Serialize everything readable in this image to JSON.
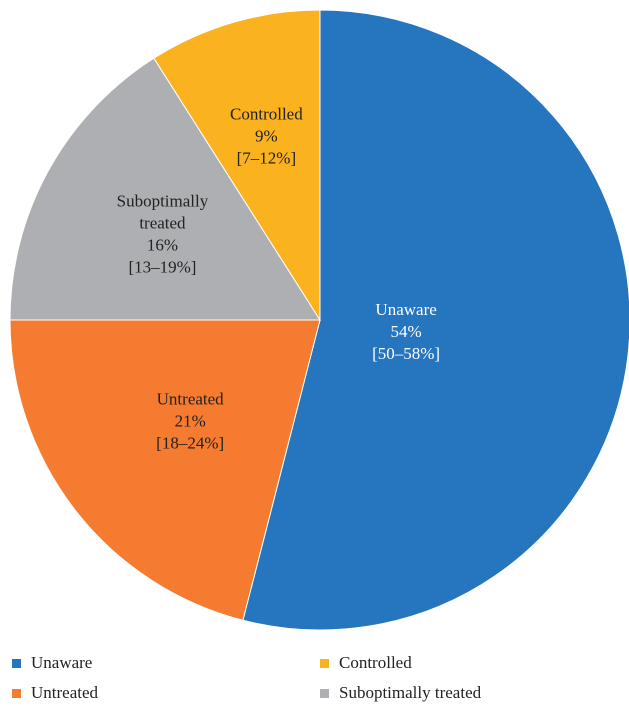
{
  "chart_data": {
    "type": "pie",
    "title": "",
    "slices": [
      {
        "label": "Unaware",
        "value": 54,
        "percent": "54%",
        "ci": "[50–58%]",
        "color": "#2575BF"
      },
      {
        "label": "Untreated",
        "value": 21,
        "percent": "21%",
        "ci": "[18–24%]",
        "color": "#F47B2F"
      },
      {
        "label": "Suboptimally treated",
        "value": 16,
        "percent": "16%",
        "ci": "[13–19%]",
        "color": "#AEAFB2"
      },
      {
        "label": "Controlled",
        "value": 9,
        "percent": "9%",
        "ci": "[7–12%]",
        "color": "#FBB21F"
      }
    ],
    "slice_label_lines": {
      "Unaware": [
        "Unaware"
      ],
      "Untreated": [
        "Untreated"
      ],
      "Suboptimally treated": [
        "Suboptimally",
        "treated"
      ],
      "Controlled": [
        "Controlled"
      ]
    },
    "legend": {
      "placement": "bottom",
      "items": [
        {
          "label": "Unaware",
          "color": "#2575BF"
        },
        {
          "label": "Controlled",
          "color": "#FBB21F"
        },
        {
          "label": "Untreated",
          "color": "#F47B2F"
        },
        {
          "label": "Suboptimally treated",
          "color": "#AEAFB2"
        }
      ]
    }
  }
}
